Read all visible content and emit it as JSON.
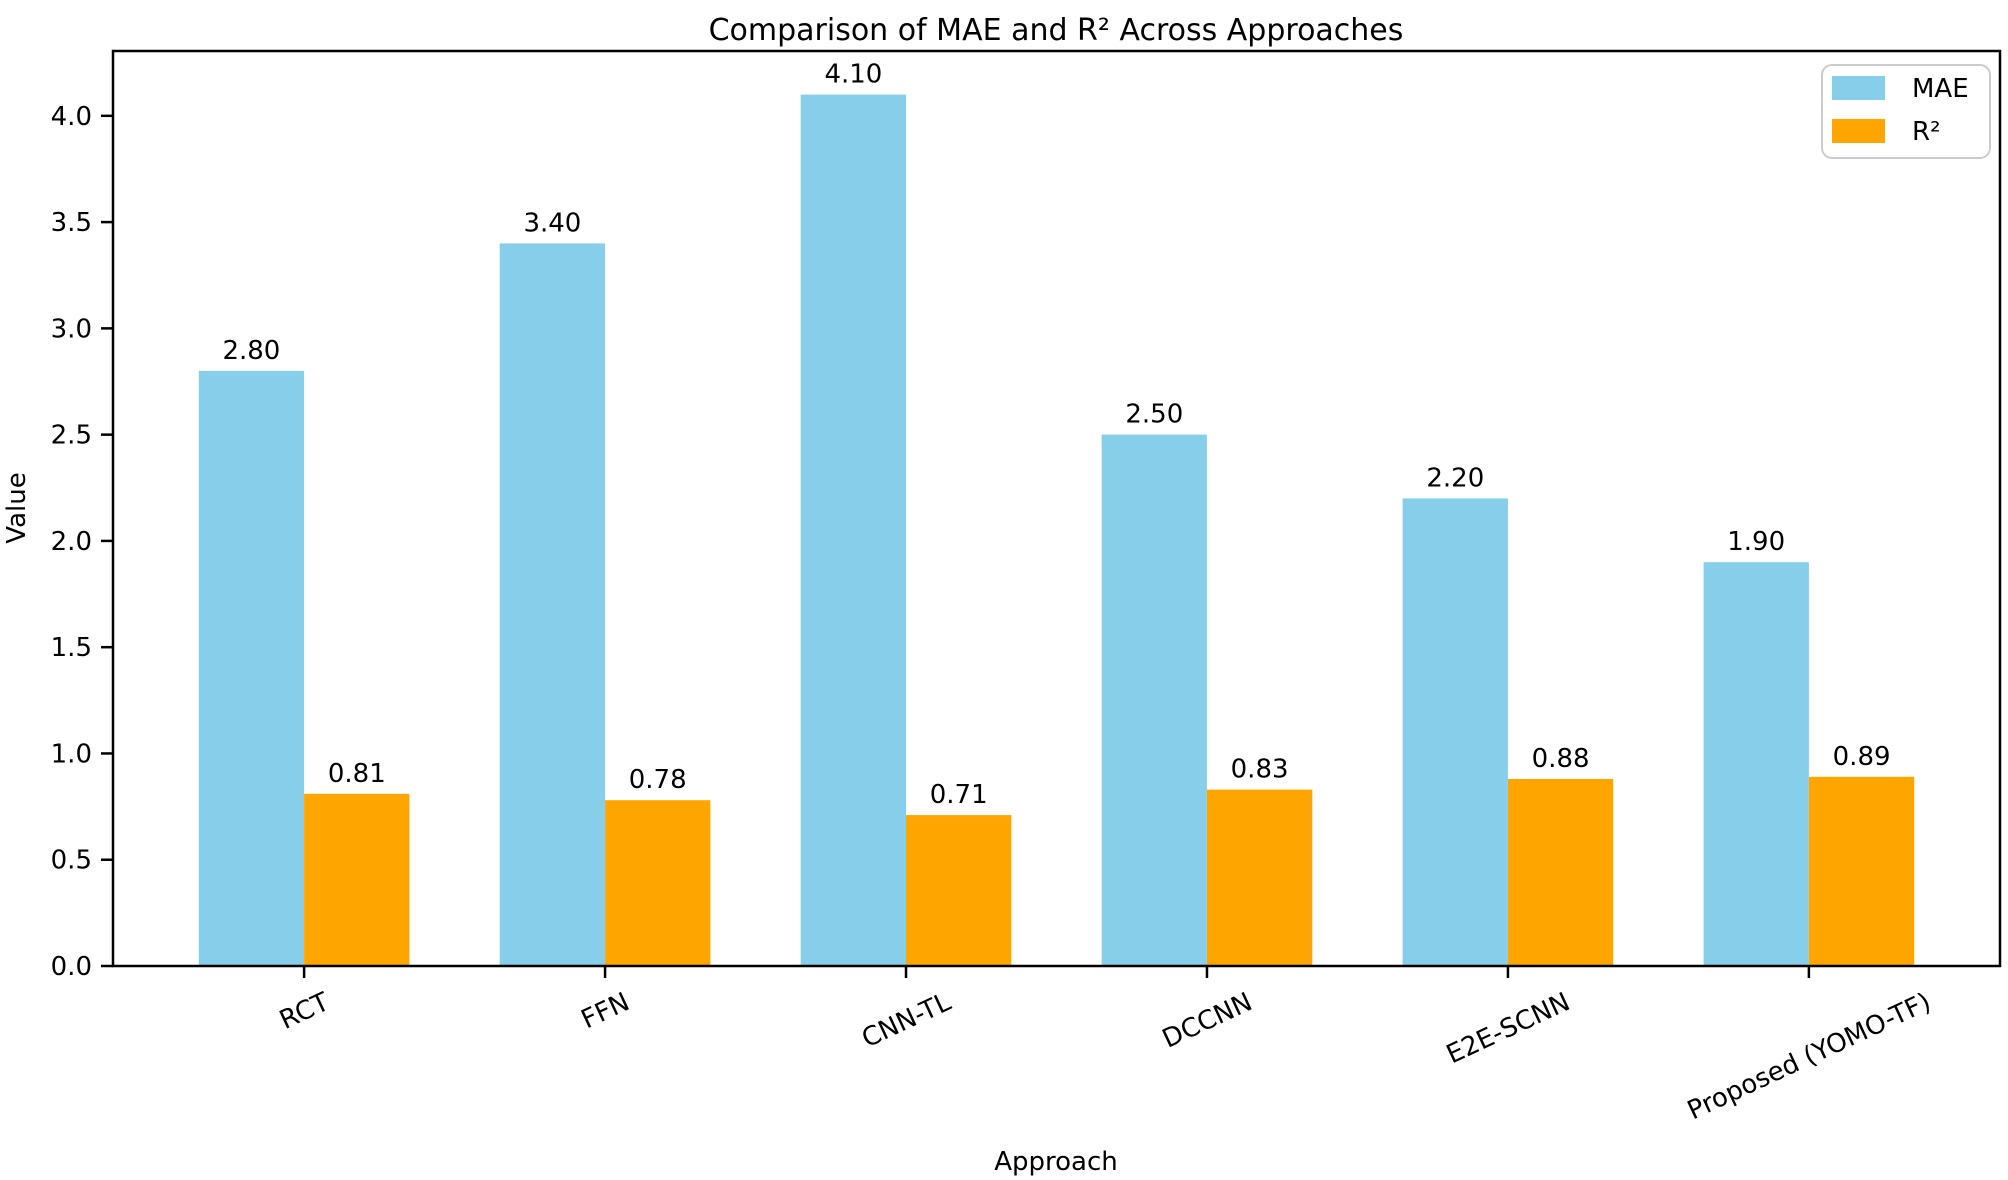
{
  "chart_data": {
    "type": "bar",
    "title": "Comparison of MAE and R² Across Approaches",
    "xlabel": "Approach",
    "ylabel": "Value",
    "categories": [
      "RCT",
      "FFN",
      "CNN-TL",
      "DCCNN",
      "E2E-SCNN",
      "Proposed (YOMO-TF)"
    ],
    "series": [
      {
        "name": "MAE",
        "color": "#87CEEB",
        "values": [
          2.8,
          3.4,
          4.1,
          2.5,
          2.2,
          1.9
        ],
        "labels": [
          "2.80",
          "3.40",
          "4.10",
          "2.50",
          "2.20",
          "1.90"
        ]
      },
      {
        "name": "R²",
        "color": "#FFA500",
        "values": [
          0.81,
          0.78,
          0.71,
          0.83,
          0.88,
          0.89
        ],
        "labels": [
          "0.81",
          "0.78",
          "0.71",
          "0.83",
          "0.88",
          "0.89"
        ]
      }
    ],
    "yticks": [
      "0.0",
      "0.5",
      "1.0",
      "1.5",
      "2.0",
      "2.5",
      "3.0",
      "3.5",
      "4.0"
    ],
    "ylim": [
      0,
      4.305
    ],
    "grid": false,
    "legend_position": "upper right",
    "bar_width_fraction": 0.35,
    "xtick_rotation_deg": 25
  },
  "colors": {
    "background": "#ffffff",
    "axis": "#000000",
    "text": "#000000",
    "legend_border": "#cccccc",
    "mae_bar": "#87CEEB",
    "r2_bar": "#FFA500"
  }
}
